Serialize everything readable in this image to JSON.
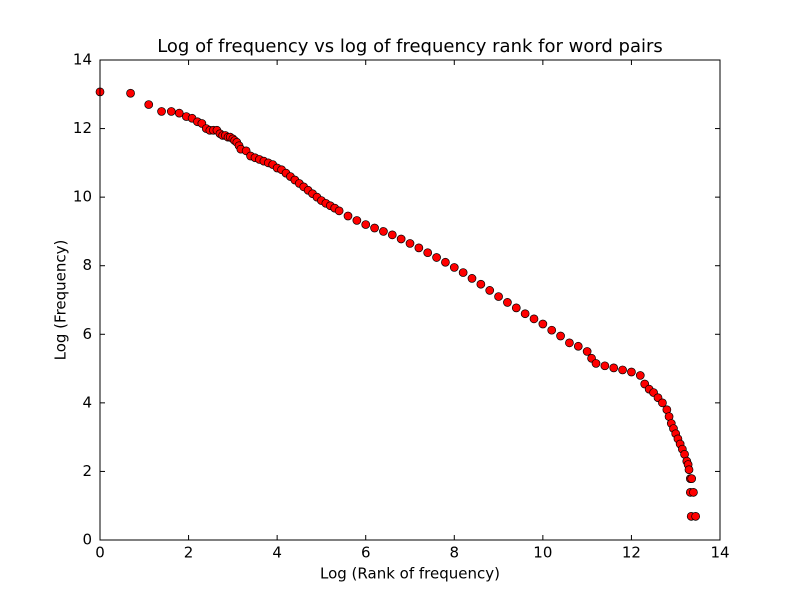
{
  "chart_data": {
    "type": "scatter",
    "title": "Log of frequency vs log of frequency rank for word pairs",
    "x_label": "Log (Rank of frequency)",
    "y_label": "Log (Frequency)",
    "color": "#ff0000",
    "xlim": [
      0,
      14
    ],
    "ylim": [
      0,
      14
    ],
    "xticks": [
      0,
      2,
      4,
      6,
      8,
      10,
      12,
      14
    ],
    "yticks": [
      0,
      2,
      4,
      6,
      8,
      10,
      12,
      14
    ],
    "x": [
      0,
      0.69,
      1.1,
      1.39,
      1.61,
      1.79,
      1.95,
      2.08,
      2.2,
      2.3,
      2.4,
      2.48,
      2.56,
      2.64,
      2.71,
      2.77,
      2.83,
      2.89,
      2.94,
      3.0,
      3.04,
      3.09,
      3.14,
      3.18,
      3.3,
      3.4,
      3.5,
      3.6,
      3.7,
      3.8,
      3.9,
      4.0,
      4.1,
      4.2,
      4.3,
      4.4,
      4.5,
      4.6,
      4.7,
      4.8,
      4.9,
      5.0,
      5.1,
      5.2,
      5.3,
      5.4,
      5.6,
      5.8,
      6.0,
      6.2,
      6.4,
      6.6,
      6.8,
      7.0,
      7.2,
      7.4,
      7.6,
      7.8,
      8.0,
      8.2,
      8.4,
      8.6,
      8.8,
      9.0,
      9.2,
      9.4,
      9.6,
      9.8,
      10.0,
      10.2,
      10.4,
      10.6,
      10.8,
      11.0,
      11.1,
      11.2,
      11.4,
      11.6,
      11.8,
      12.0,
      12.2,
      12.3,
      12.4,
      12.5,
      12.6,
      12.7,
      12.8,
      12.85,
      12.9,
      12.95,
      13.0,
      13.05,
      13.1,
      13.15,
      13.2,
      13.25,
      13.28,
      13.3,
      13.33,
      13.36,
      13.33,
      13.4,
      13.35,
      13.45
    ],
    "values": [
      13.07,
      13.03,
      12.7,
      12.5,
      12.5,
      12.45,
      12.35,
      12.3,
      12.2,
      12.15,
      12.0,
      11.95,
      11.95,
      11.95,
      11.85,
      11.8,
      11.8,
      11.75,
      11.75,
      11.7,
      11.65,
      11.6,
      11.5,
      11.4,
      11.35,
      11.2,
      11.15,
      11.1,
      11.05,
      11.0,
      10.95,
      10.85,
      10.8,
      10.7,
      10.6,
      10.5,
      10.4,
      10.3,
      10.2,
      10.1,
      10.0,
      9.9,
      9.82,
      9.75,
      9.68,
      9.6,
      9.45,
      9.32,
      9.2,
      9.1,
      9.0,
      8.9,
      8.78,
      8.65,
      8.52,
      8.38,
      8.24,
      8.1,
      7.95,
      7.8,
      7.63,
      7.46,
      7.28,
      7.1,
      6.93,
      6.77,
      6.6,
      6.45,
      6.3,
      6.12,
      5.95,
      5.75,
      5.65,
      5.5,
      5.3,
      5.15,
      5.08,
      5.02,
      4.96,
      4.9,
      4.8,
      4.55,
      4.4,
      4.3,
      4.15,
      4.0,
      3.8,
      3.6,
      3.4,
      3.25,
      3.1,
      2.95,
      2.8,
      2.65,
      2.5,
      2.3,
      2.2,
      2.05,
      1.79,
      1.79,
      1.39,
      1.39,
      0.69,
      0.69
    ]
  }
}
